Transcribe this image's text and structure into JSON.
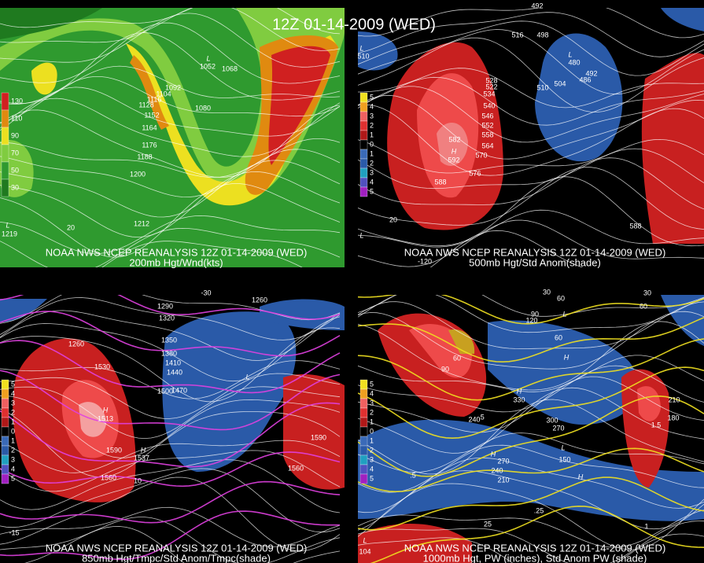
{
  "title": "12Z 01-14-2009 (WED)",
  "panels": [
    {
      "caption_line1": "NOAA NWS NCEP REANALYSIS 12Z 01-14-2009 (WED)",
      "caption_line2": "200mb Hgt/Wnd(kts)",
      "legend": [
        "130",
        "110",
        "90",
        "70",
        "50",
        "30"
      ],
      "labels": [
        "1092",
        "1104",
        "1116",
        "1128",
        "1152",
        "1164",
        "1176",
        "1188",
        "1200",
        "1212",
        "1080",
        "1068",
        "L",
        "1052",
        "L",
        "1219",
        "20"
      ]
    },
    {
      "caption_line1": "NOAA NWS NCEP REANALYSIS 12Z 01-14-2009 (WED)",
      "caption_line2": "500mb Hgt/Std Anom(shade)",
      "legend": [
        "5",
        "4",
        "3",
        "2",
        "1",
        "0",
        "1",
        "2",
        "3",
        "4",
        "5"
      ],
      "labels": [
        "492",
        "516",
        "498",
        "L",
        "510",
        "528",
        "522",
        "504",
        "510",
        "534",
        "540",
        "546",
        "552",
        "558",
        "564",
        "570",
        "576",
        "582",
        "H",
        "592",
        "588",
        "L",
        "480",
        "492",
        "486",
        "588",
        "L",
        "20",
        "-120"
      ]
    },
    {
      "caption_line1": "NOAA NWS NCEP REANALYSIS 12Z 01-14-2009 (WED)",
      "caption_line2": "850mb Hgt/Tmpc/Std Anom/Tmpc(shade)",
      "legend": [
        "5",
        "4",
        "3",
        "2",
        "1",
        "0",
        "1",
        "2",
        "3",
        "4",
        "5"
      ],
      "labels": [
        "1320",
        "1290",
        "1350",
        "1380",
        "1410",
        "1440",
        "1470",
        "1500",
        "1530",
        "1260",
        "1560",
        "1590",
        "1560",
        "1590",
        "1260",
        "H",
        "1513",
        "H",
        "1537",
        "10",
        "-15",
        "-30",
        "L"
      ]
    },
    {
      "caption_line1": "NOAA NWS NCEP REANALYSIS 12Z 01-14-2009 (WED)",
      "caption_line2": "1000mb Hgt, PW (inches), Std Anom PW (shade)",
      "legend": [
        "5",
        "4",
        "3",
        "2",
        "1",
        "0",
        "1",
        "2",
        "3",
        "4",
        "5"
      ],
      "labels": [
        "30",
        "60",
        "90",
        "120",
        "L",
        "60",
        "H",
        "H",
        "330",
        "300",
        "270",
        "240",
        "270",
        "240",
        "210",
        "H",
        "150",
        "L",
        "H",
        "210",
        "180",
        "30",
        "60",
        ".5",
        ".5",
        ".25",
        "25",
        "1",
        "1.5",
        "L",
        "104",
        "60",
        "90"
      ]
    }
  ]
}
